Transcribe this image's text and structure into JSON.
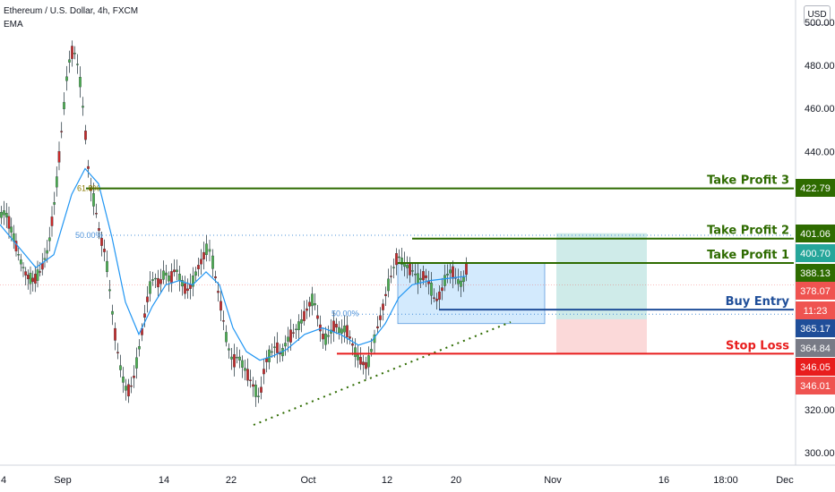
{
  "header": {
    "title": "Ethereum / U.S. Dollar, 4h, FXCM",
    "indicator": "EMA"
  },
  "currency_button": "USD",
  "chart_data": {
    "type": "candlestick",
    "ylim": [
      296,
      518
    ],
    "y_ticks": [
      300,
      320,
      340,
      360,
      380,
      400,
      420,
      440,
      460,
      480,
      500
    ],
    "y_tick_labels": [
      "300.00",
      "320.00",
      "340.00",
      "360.00",
      "380.00",
      "400.00",
      "420.00",
      "440.00",
      "460.00",
      "480.00",
      "500.00"
    ],
    "x_labels": [
      "4",
      "Sep",
      "14",
      "22",
      "Oct",
      "12",
      "20",
      "Nov",
      "16",
      "18:00",
      "Dec"
    ],
    "series_points": [
      [
        0,
        410
      ],
      [
        6,
        412
      ],
      [
        14,
        402
      ],
      [
        22,
        390
      ],
      [
        30,
        382
      ],
      [
        38,
        380
      ],
      [
        46,
        385
      ],
      [
        54,
        395
      ],
      [
        62,
        420
      ],
      [
        70,
        455
      ],
      [
        76,
        480
      ],
      [
        82,
        488
      ],
      [
        88,
        478
      ],
      [
        94,
        455
      ],
      [
        100,
        425
      ],
      [
        106,
        415
      ],
      [
        112,
        400
      ],
      [
        118,
        392
      ],
      [
        124,
        370
      ],
      [
        130,
        350
      ],
      [
        136,
        336
      ],
      [
        142,
        328
      ],
      [
        148,
        332
      ],
      [
        154,
        345
      ],
      [
        160,
        360
      ],
      [
        166,
        375
      ],
      [
        172,
        382
      ],
      [
        178,
        378
      ],
      [
        184,
        384
      ],
      [
        190,
        380
      ],
      [
        196,
        386
      ],
      [
        202,
        380
      ],
      [
        208,
        375
      ],
      [
        214,
        378
      ],
      [
        220,
        385
      ],
      [
        226,
        390
      ],
      [
        232,
        396
      ],
      [
        236,
        392
      ],
      [
        242,
        378
      ],
      [
        248,
        365
      ],
      [
        254,
        350
      ],
      [
        260,
        342
      ],
      [
        266,
        345
      ],
      [
        272,
        340
      ],
      [
        278,
        335
      ],
      [
        284,
        330
      ],
      [
        290,
        325
      ],
      [
        296,
        342
      ],
      [
        302,
        346
      ],
      [
        308,
        350
      ],
      [
        314,
        345
      ],
      [
        320,
        352
      ],
      [
        326,
        355
      ],
      [
        332,
        358
      ],
      [
        338,
        362
      ],
      [
        344,
        368
      ],
      [
        350,
        372
      ],
      [
        356,
        360
      ],
      [
        362,
        352
      ],
      [
        368,
        355
      ],
      [
        374,
        360
      ],
      [
        380,
        356
      ],
      [
        386,
        358
      ],
      [
        392,
        352
      ],
      [
        398,
        345
      ],
      [
        404,
        342
      ],
      [
        410,
        340
      ],
      [
        416,
        350
      ],
      [
        420,
        356
      ],
      [
        426,
        365
      ],
      [
        432,
        376
      ],
      [
        438,
        384
      ],
      [
        444,
        392
      ],
      [
        450,
        388
      ],
      [
        456,
        386
      ],
      [
        462,
        384
      ],
      [
        468,
        380
      ],
      [
        474,
        383
      ],
      [
        480,
        378
      ],
      [
        486,
        370
      ],
      [
        492,
        374
      ],
      [
        498,
        382
      ],
      [
        504,
        385
      ],
      [
        510,
        380
      ],
      [
        516,
        378
      ],
      [
        522,
        388
      ]
    ],
    "ema_points": [
      [
        0,
        406
      ],
      [
        20,
        396
      ],
      [
        40,
        386
      ],
      [
        60,
        392
      ],
      [
        80,
        420
      ],
      [
        95,
        432
      ],
      [
        110,
        425
      ],
      [
        125,
        400
      ],
      [
        140,
        370
      ],
      [
        155,
        355
      ],
      [
        170,
        368
      ],
      [
        185,
        378
      ],
      [
        200,
        380
      ],
      [
        215,
        378
      ],
      [
        230,
        384
      ],
      [
        245,
        378
      ],
      [
        260,
        358
      ],
      [
        275,
        347
      ],
      [
        290,
        343
      ],
      [
        305,
        345
      ],
      [
        320,
        348
      ],
      [
        340,
        355
      ],
      [
        360,
        358
      ],
      [
        380,
        355
      ],
      [
        400,
        350
      ],
      [
        415,
        352
      ],
      [
        430,
        360
      ],
      [
        445,
        372
      ],
      [
        460,
        378
      ],
      [
        480,
        380
      ],
      [
        500,
        381
      ],
      [
        520,
        382
      ]
    ],
    "levels": [
      {
        "name": "Take Profit 3",
        "value": 422.79,
        "label": "422.79",
        "color": "#2e6b00",
        "text_color": "#2e6b00"
      },
      {
        "name": "Take Profit 2",
        "value": 401.06,
        "label": "401.06",
        "color": "#2e6b00",
        "text_color": "#2e6b00"
      },
      {
        "name": "Take Profit 1",
        "value": 388.13,
        "label": "388.13",
        "color": "#2e6b00",
        "text_color": "#2e6b00"
      },
      {
        "name": "Buy Entry",
        "value": 365.17,
        "label": "365.17",
        "color": "#1f4e99",
        "text_color": "#1f4e99"
      },
      {
        "name": "Stop Loss",
        "value": 346.05,
        "label": "346.05",
        "color": "#e81d1d",
        "text_color": "#e81d1d"
      }
    ],
    "extra_price_labels": [
      {
        "label": "400.70",
        "value": 400.7,
        "bg": "#26a69a"
      },
      {
        "label": "378.07",
        "value": 378.07,
        "bg": "#ef5350"
      },
      {
        "label": "11:23",
        "value": 370.9,
        "bg": "#ef5350"
      },
      {
        "label": "364.84",
        "value": 364.84,
        "bg": "#787b86"
      },
      {
        "label": "346.01",
        "value": 346.01,
        "bg": "#ef5350"
      }
    ],
    "fib_labels": [
      {
        "label": "61.8%",
        "value": 422.79
      },
      {
        "label": "50.00%",
        "value": 401.06
      },
      {
        "label": "50.00%",
        "value": 365.17
      }
    ],
    "current_price": 378.07
  }
}
